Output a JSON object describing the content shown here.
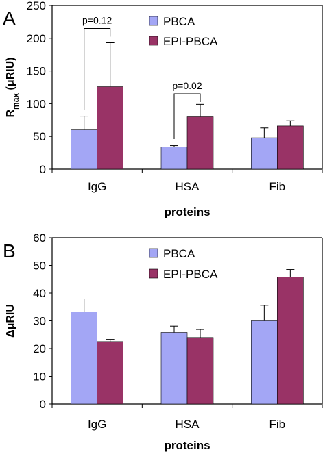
{
  "colors": {
    "PBCA": "#a3a6f5",
    "EPI-PBCA": "#993366"
  },
  "chart_data": [
    {
      "panel_label": "A",
      "type": "bar",
      "categories": [
        "IgG",
        "HSA",
        "Fib"
      ],
      "series": [
        {
          "name": "PBCA",
          "values": [
            60,
            34,
            48
          ],
          "errors": [
            21,
            2,
            15
          ]
        },
        {
          "name": "EPI-PBCA",
          "values": [
            126,
            80,
            66
          ],
          "errors": [
            67,
            19,
            8
          ]
        }
      ],
      "ylim": [
        0,
        250
      ],
      "yticks": [
        0,
        50,
        100,
        150,
        200,
        250
      ],
      "xlabel": "proteins",
      "ylabel_main": "R",
      "ylabel_sub": "max",
      "ylabel_rest": " (μRIU)",
      "legend_position": "top-right",
      "annotations": [
        {
          "text": "p=0.12",
          "category": "IgG",
          "y": 215
        },
        {
          "text": "p=0.02",
          "category": "HSA",
          "y": 115
        }
      ]
    },
    {
      "panel_label": "B",
      "type": "bar",
      "categories": [
        "IgG",
        "HSA",
        "Fib"
      ],
      "series": [
        {
          "name": "PBCA",
          "values": [
            33.2,
            25.8,
            30
          ],
          "errors": [
            4.7,
            2.3,
            5.6
          ]
        },
        {
          "name": "EPI-PBCA",
          "values": [
            22.5,
            24,
            45.8
          ],
          "errors": [
            0.8,
            2.9,
            2.7
          ]
        }
      ],
      "ylim": [
        0,
        60
      ],
      "yticks": [
        0,
        10,
        20,
        30,
        40,
        50,
        60
      ],
      "xlabel": "proteins",
      "ylabel": "ΔμRIU",
      "legend_position": "top-right"
    }
  ]
}
